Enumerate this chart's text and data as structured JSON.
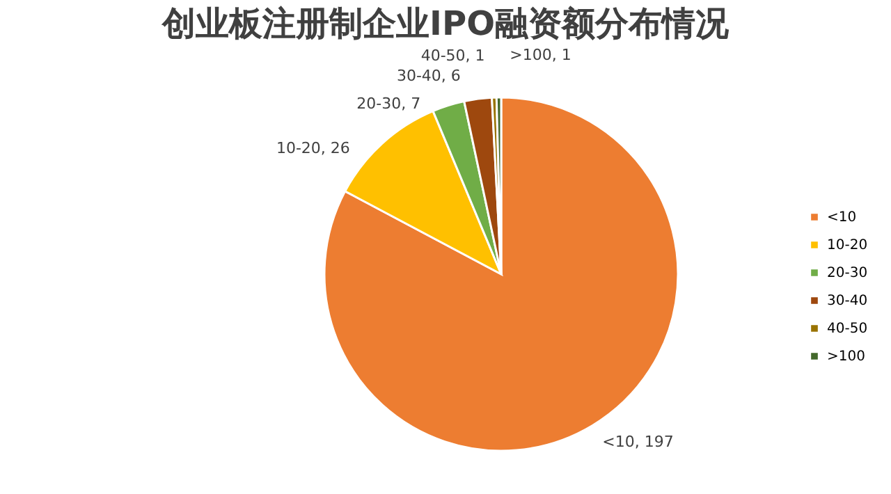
{
  "chart_data": {
    "type": "pie",
    "title": "创业板注册制企业IPO融资额分布情况",
    "categories": [
      "<10",
      "10-20",
      "20-30",
      "30-40",
      "40-50",
      ">100"
    ],
    "values": [
      197,
      26,
      7,
      6,
      1,
      1
    ],
    "colors": [
      "#ed7d31",
      "#ffc000",
      "#70ad47",
      "#9e480e",
      "#997300",
      "#43682b"
    ],
    "value_labels": [
      "<10, 197",
      "10-20, 26",
      "20-30, 7",
      "30-40, 6",
      "40-50, 1",
      ">100, 1"
    ],
    "legend": "right"
  }
}
